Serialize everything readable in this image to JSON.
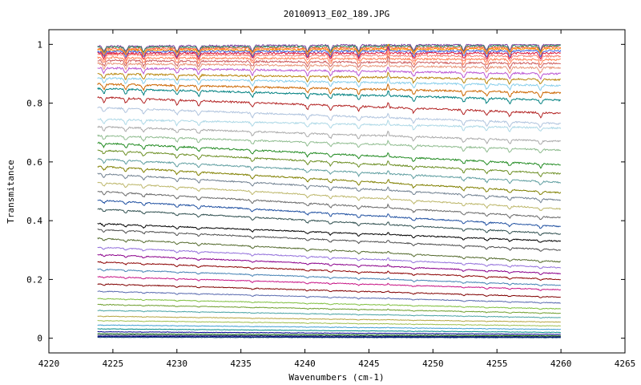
{
  "chart_data": {
    "type": "line",
    "title": "20100913_E02_189.JPG",
    "xlabel": "Wavenumbers (cm-1)",
    "ylabel": "Transmitance",
    "xlim": [
      4220,
      4265
    ],
    "ylim": [
      -0.05,
      1.05
    ],
    "x_data_range": [
      4223.8,
      4260
    ],
    "x_ticks": [
      "4220",
      "4225",
      "4230",
      "4235",
      "4240",
      "4245",
      "4250",
      "4255",
      "4260",
      "4265"
    ],
    "y_ticks": [
      "0",
      "0.2",
      "0.4",
      "0.6",
      "0.8",
      "1"
    ],
    "grid": false,
    "legend": "none",
    "absorption_lines": [
      4224.3,
      4226.0,
      4227.4,
      4230.0,
      4231.7,
      4235.9,
      4240.2,
      4242.0,
      4244.2,
      4248.5,
      4252.4,
      4254.2,
      4256.0,
      4258.4
    ],
    "emission_spike": 4246.5,
    "series": [
      {
        "start": 0.993,
        "end": 1.0,
        "color": "#7b3fa0"
      },
      {
        "start": 0.99,
        "end": 0.995,
        "color": "#2e8b57"
      },
      {
        "start": 0.985,
        "end": 0.99,
        "color": "#ff6347"
      },
      {
        "start": 0.98,
        "end": 0.985,
        "color": "#ff8c00"
      },
      {
        "start": 0.975,
        "end": 0.978,
        "color": "#4169e1"
      },
      {
        "start": 0.97,
        "end": 0.97,
        "color": "#dc143c"
      },
      {
        "start": 0.965,
        "end": 0.96,
        "color": "#fa8072"
      },
      {
        "start": 0.955,
        "end": 0.948,
        "color": "#ff7f50"
      },
      {
        "start": 0.945,
        "end": 0.935,
        "color": "#cd5c5c"
      },
      {
        "start": 0.935,
        "end": 0.92,
        "color": "#e9967a"
      },
      {
        "start": 0.92,
        "end": 0.9,
        "color": "#ba55d3"
      },
      {
        "start": 0.9,
        "end": 0.88,
        "color": "#b8860b"
      },
      {
        "start": 0.885,
        "end": 0.86,
        "color": "#87ceeb"
      },
      {
        "start": 0.865,
        "end": 0.835,
        "color": "#cc6600"
      },
      {
        "start": 0.85,
        "end": 0.81,
        "color": "#008080"
      },
      {
        "start": 0.82,
        "end": 0.765,
        "color": "#b22222"
      },
      {
        "start": 0.785,
        "end": 0.73,
        "color": "#b0c4de"
      },
      {
        "start": 0.745,
        "end": 0.715,
        "color": "#add8e6"
      },
      {
        "start": 0.72,
        "end": 0.67,
        "color": "#a9a9a9"
      },
      {
        "start": 0.69,
        "end": 0.64,
        "color": "#8fbc8f"
      },
      {
        "start": 0.665,
        "end": 0.59,
        "color": "#228b22"
      },
      {
        "start": 0.64,
        "end": 0.56,
        "color": "#6b8e23"
      },
      {
        "start": 0.61,
        "end": 0.53,
        "color": "#5f9ea0"
      },
      {
        "start": 0.585,
        "end": 0.495,
        "color": "#808000"
      },
      {
        "start": 0.56,
        "end": 0.47,
        "color": "#708090"
      },
      {
        "start": 0.53,
        "end": 0.44,
        "color": "#bdb76b"
      },
      {
        "start": 0.5,
        "end": 0.41,
        "color": "#696969"
      },
      {
        "start": 0.47,
        "end": 0.38,
        "color": "#1e4fa0"
      },
      {
        "start": 0.44,
        "end": 0.355,
        "color": "#2f4f4f"
      },
      {
        "start": 0.39,
        "end": 0.33,
        "color": "#000000"
      },
      {
        "start": 0.37,
        "end": 0.3,
        "color": "#4d4d4d"
      },
      {
        "start": 0.34,
        "end": 0.26,
        "color": "#556b2f"
      },
      {
        "start": 0.31,
        "end": 0.24,
        "color": "#9370db"
      },
      {
        "start": 0.285,
        "end": 0.22,
        "color": "#8b008b"
      },
      {
        "start": 0.26,
        "end": 0.2,
        "color": "#8b0000"
      },
      {
        "start": 0.235,
        "end": 0.18,
        "color": "#4682b4"
      },
      {
        "start": 0.21,
        "end": 0.165,
        "color": "#c71585"
      },
      {
        "start": 0.185,
        "end": 0.14,
        "color": "#800000"
      },
      {
        "start": 0.16,
        "end": 0.12,
        "color": "#5b6cb0"
      },
      {
        "start": 0.135,
        "end": 0.1,
        "color": "#7fbf3f"
      },
      {
        "start": 0.115,
        "end": 0.085,
        "color": "#6f9f2f"
      },
      {
        "start": 0.095,
        "end": 0.07,
        "color": "#4aa3a3"
      },
      {
        "start": 0.075,
        "end": 0.055,
        "color": "#b5a642"
      },
      {
        "start": 0.06,
        "end": 0.042,
        "color": "#9fbf4f"
      },
      {
        "start": 0.045,
        "end": 0.03,
        "color": "#40a0d0"
      },
      {
        "start": 0.032,
        "end": 0.02,
        "color": "#008b8b"
      },
      {
        "start": 0.022,
        "end": 0.013,
        "color": "#00008b"
      },
      {
        "start": 0.015,
        "end": 0.008,
        "color": "#006400"
      },
      {
        "start": 0.01,
        "end": 0.005,
        "color": "#191970"
      },
      {
        "start": 0.006,
        "end": 0.003,
        "color": "#000080"
      },
      {
        "start": 0.003,
        "end": 0.002,
        "color": "#003366"
      }
    ]
  }
}
